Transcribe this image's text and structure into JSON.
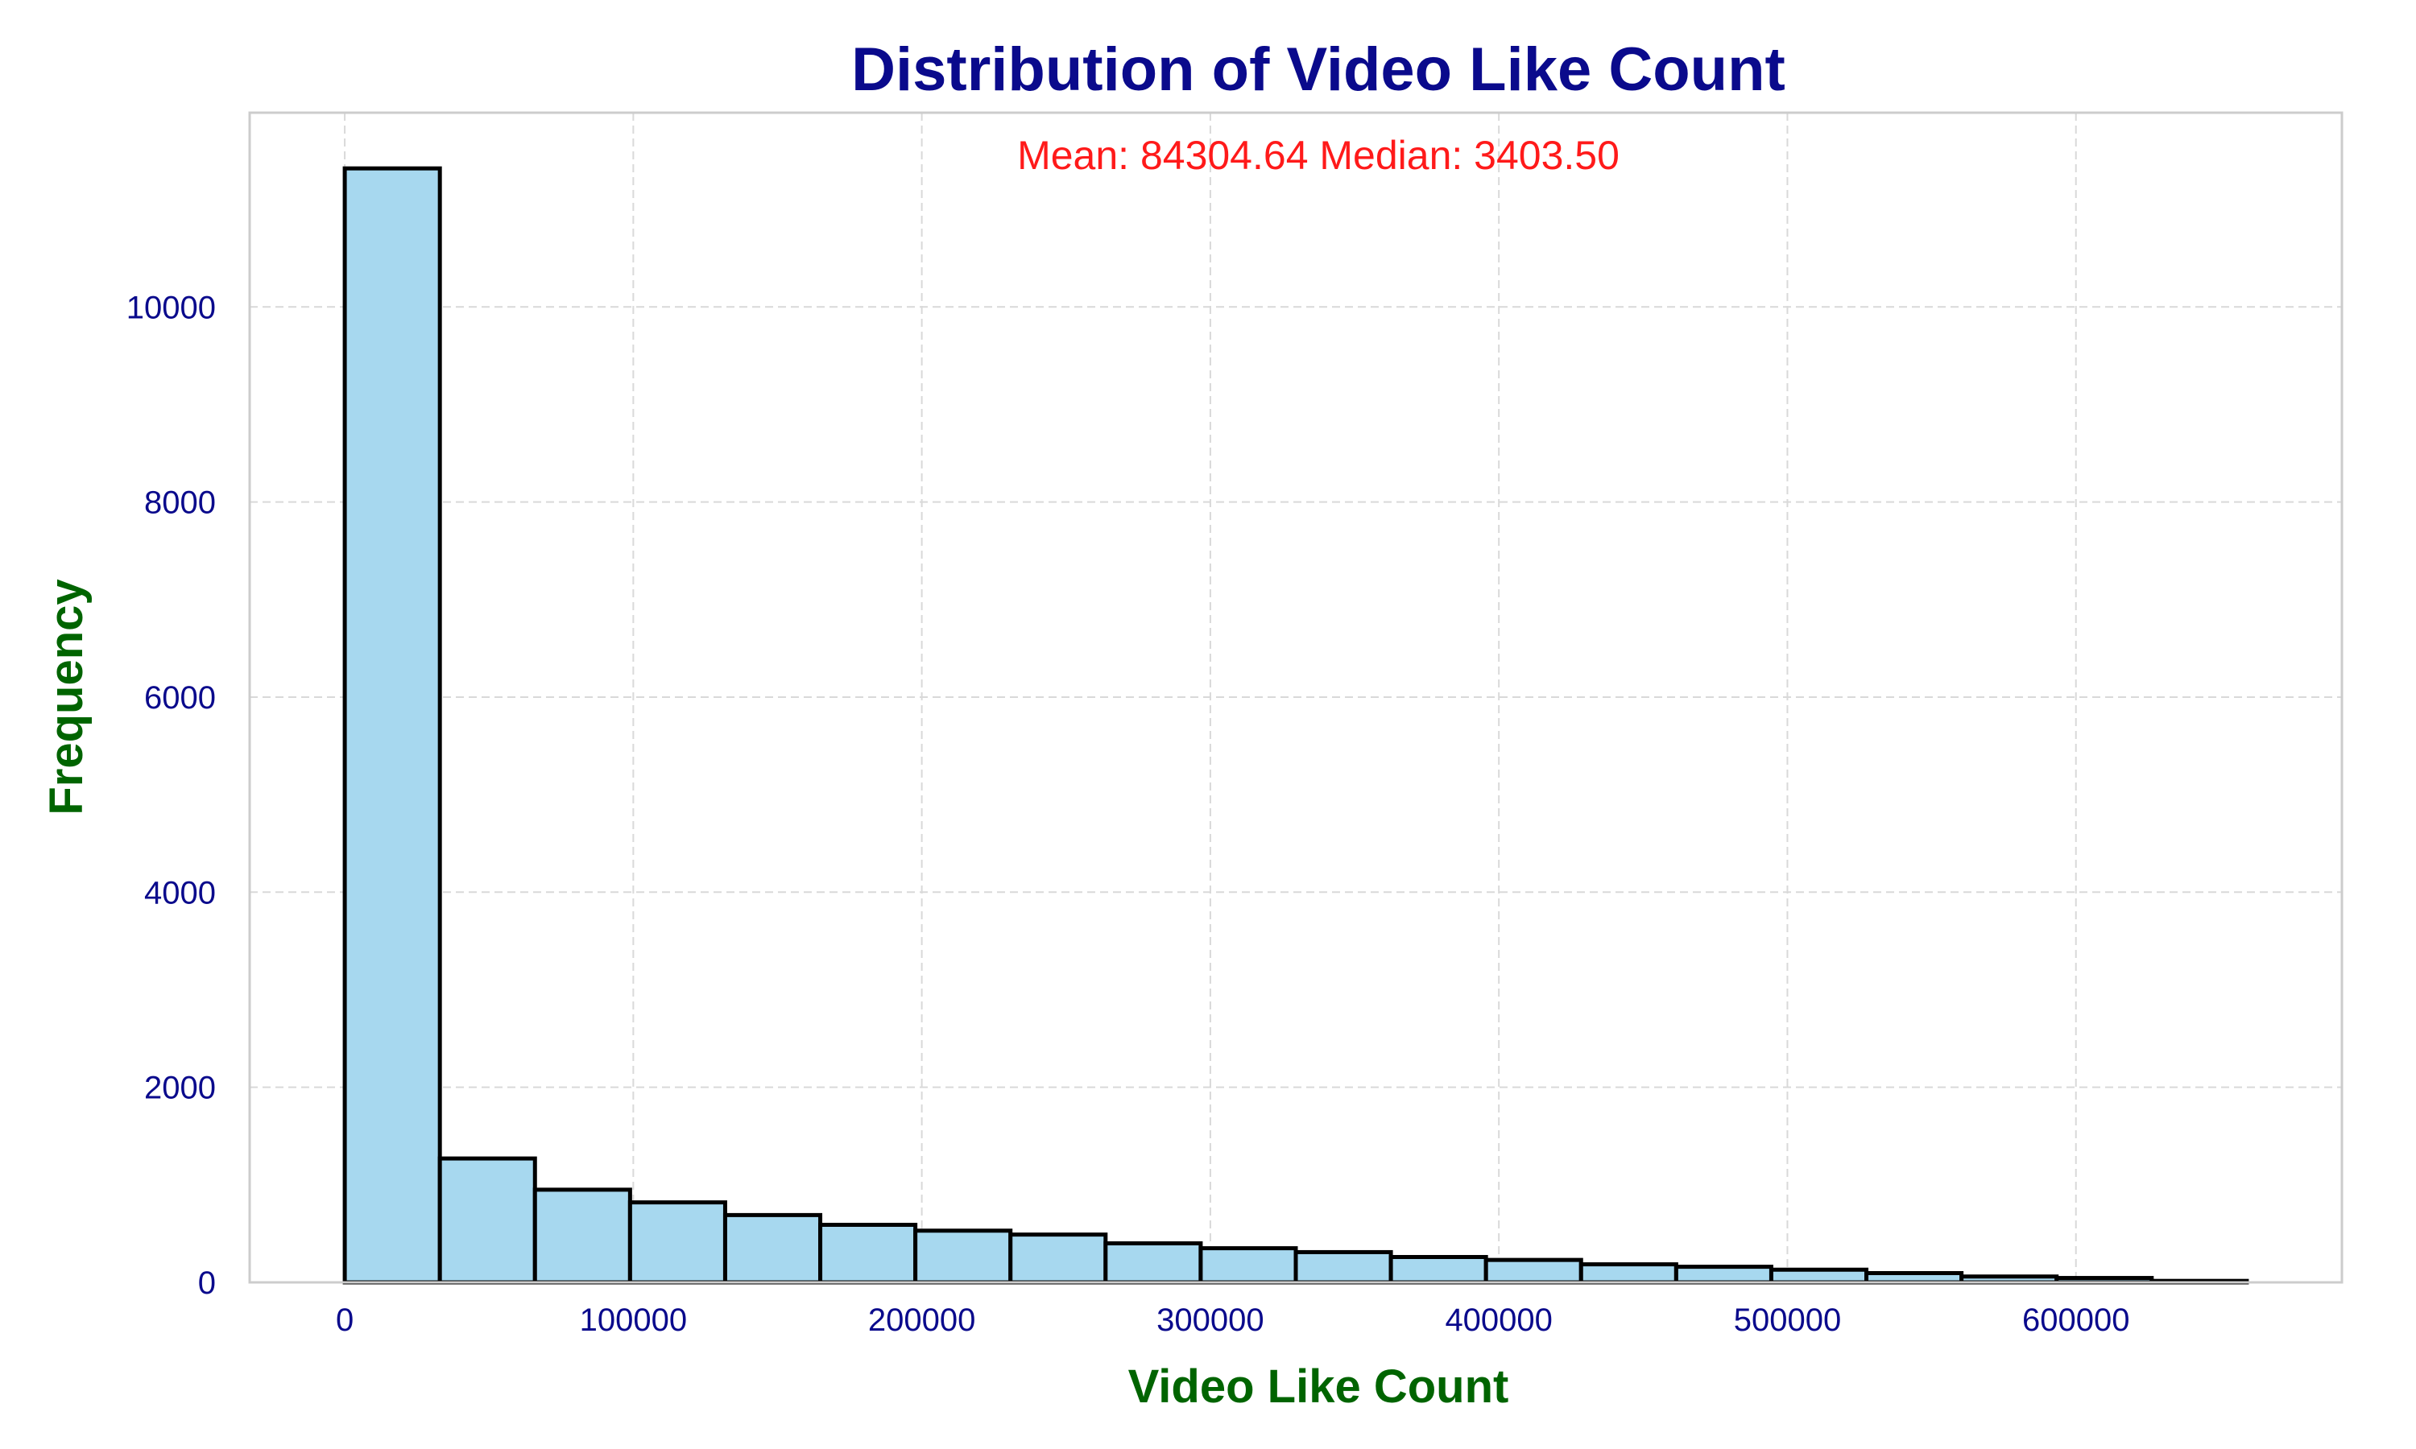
{
  "chart_data": {
    "type": "bar",
    "title": "Distribution of Video Like Count",
    "xlabel": "Video Like Count",
    "ylabel": "Frequency",
    "annotation": "Mean: 84304.64   Median: 3403.50",
    "bin_edges": [
      0,
      32961,
      65922,
      98883,
      131844,
      164805,
      197766,
      230727,
      263688,
      296649,
      329610,
      362571,
      395532,
      428493,
      461454,
      494415,
      527376,
      560337,
      593298,
      626259,
      659220
    ],
    "values": [
      11420,
      1270,
      950,
      820,
      690,
      590,
      530,
      490,
      400,
      350,
      310,
      260,
      230,
      185,
      160,
      130,
      95,
      60,
      45,
      15
    ],
    "xlim": [
      -32961,
      692181
    ],
    "ylim": [
      0,
      11991
    ],
    "xticks": [
      0,
      100000,
      200000,
      300000,
      400000,
      500000,
      600000
    ],
    "xtick_labels": [
      "0",
      "100000",
      "200000",
      "300000",
      "400000",
      "500000",
      "600000"
    ],
    "yticks": [
      0,
      2000,
      4000,
      6000,
      8000,
      10000
    ],
    "ytick_labels": [
      "0",
      "2000",
      "4000",
      "6000",
      "8000",
      "10000"
    ],
    "grid": true,
    "colors": {
      "bar_fill": "#a7d8ef",
      "bar_edge": "#000000",
      "title": "#0a0a8c",
      "axis_label": "#006400",
      "tick_label": "#0a0a8c",
      "annotation": "#ff1a1a"
    }
  }
}
